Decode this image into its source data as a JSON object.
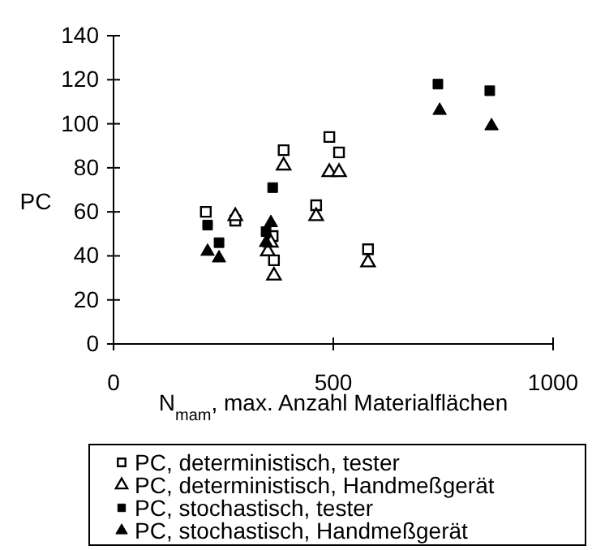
{
  "chart_data": {
    "type": "scatter",
    "xlabel": "N$_{mam}$, max. Anzahl Materialflächen",
    "ylabel": "PC",
    "xlim": [
      0,
      1000
    ],
    "xticks": [
      0,
      500,
      1000
    ],
    "ylim": [
      0,
      140
    ],
    "yticks": [
      0,
      20,
      40,
      60,
      80,
      100,
      120,
      140
    ],
    "grid": false,
    "legend": "bottom",
    "series": [
      {
        "name": "PC, deterministisch, tester",
        "color": "#000000",
        "marker": "square-open",
        "x": [
          210,
          277,
          365,
          362,
          387,
          491,
          513,
          461,
          579
        ],
        "values": [
          60,
          56,
          38,
          49,
          88,
          94,
          87,
          63,
          43
        ]
      },
      {
        "name": "PC, deterministisch, Handmeßgerät",
        "color": "#000000",
        "marker": "triangle-open",
        "x": [
          387,
          491,
          513,
          461,
          579,
          277,
          365,
          351,
          358
        ],
        "values": [
          81,
          78,
          78,
          58,
          37,
          58,
          31,
          42,
          46
        ]
      },
      {
        "name": "PC, stochastisch, tester",
        "color": "#000000",
        "marker": "square",
        "x": [
          214,
          240,
          362,
          347,
          738,
          856
        ],
        "values": [
          54,
          46,
          71,
          51,
          118,
          115
        ]
      },
      {
        "name": "PC, stochastisch, Handmeßgerät",
        "color": "#000000",
        "marker": "triangle",
        "x": [
          214,
          240,
          358,
          347,
          742,
          860
        ],
        "values": [
          42,
          39,
          55,
          46,
          106,
          99
        ]
      }
    ]
  }
}
